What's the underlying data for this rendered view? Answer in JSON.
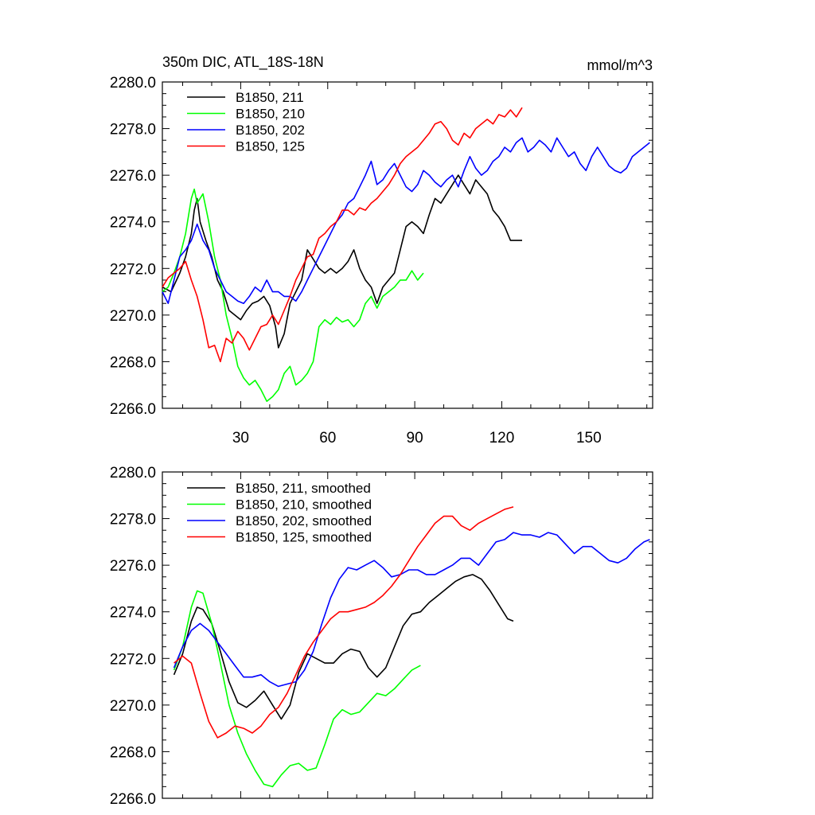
{
  "chart_data": [
    {
      "type": "line",
      "title": "350m DIC, ATL_18S-18N",
      "units": "mmol/m^3",
      "ylim": [
        2266.0,
        2280.0
      ],
      "xlim": [
        3,
        172
      ],
      "yticks": [
        "2266.0",
        "2268.0",
        "2270.0",
        "2272.0",
        "2274.0",
        "2276.0",
        "2278.0",
        "2280.0"
      ],
      "xticks": [
        "30",
        "60",
        "90",
        "120",
        "150"
      ],
      "legend_position": "top-left",
      "series": [
        {
          "name": "B1850, 211",
          "color": "#000000",
          "x": [
            3,
            6,
            9,
            11,
            13,
            14,
            15,
            16,
            18,
            20,
            22,
            24,
            26,
            28,
            30,
            32,
            34,
            36,
            38,
            40,
            42,
            43,
            45,
            47,
            49,
            51,
            53,
            55,
            57,
            59,
            61,
            63,
            65,
            67,
            69,
            71,
            73,
            75,
            77,
            79,
            81,
            83,
            85,
            87,
            89,
            91,
            93,
            95,
            97,
            99,
            101,
            103,
            105,
            107,
            109,
            111,
            113,
            115,
            117,
            119,
            121,
            123,
            125,
            127
          ],
          "y": [
            2271.2,
            2271.0,
            2271.8,
            2272.5,
            2273.5,
            2274.5,
            2275.0,
            2274.0,
            2273.2,
            2272.5,
            2271.5,
            2271.0,
            2270.2,
            2270.0,
            2269.8,
            2270.2,
            2270.5,
            2270.6,
            2270.8,
            2270.4,
            2269.5,
            2268.6,
            2269.2,
            2270.5,
            2271.0,
            2271.5,
            2272.8,
            2272.4,
            2272.0,
            2271.8,
            2272.0,
            2271.8,
            2272.0,
            2272.3,
            2272.8,
            2272.0,
            2271.5,
            2271.2,
            2270.5,
            2271.2,
            2271.5,
            2271.8,
            2272.8,
            2273.8,
            2274.0,
            2273.8,
            2273.5,
            2274.3,
            2275.0,
            2274.8,
            2275.2,
            2275.6,
            2276.0,
            2275.6,
            2275.2,
            2275.8,
            2275.5,
            2275.2,
            2274.5,
            2274.2,
            2273.8,
            2273.2,
            2273.2,
            2273.2
          ]
        },
        {
          "name": "B1850, 210",
          "color": "#00ff00",
          "x": [
            3,
            5,
            7,
            9,
            11,
            13,
            14,
            15,
            17,
            19,
            21,
            23,
            25,
            27,
            29,
            31,
            33,
            35,
            37,
            39,
            41,
            43,
            45,
            47,
            49,
            51,
            53,
            55,
            57,
            59,
            61,
            63,
            65,
            67,
            69,
            71,
            73,
            75,
            77,
            79,
            81,
            83,
            85,
            87,
            89,
            91,
            93
          ],
          "y": [
            2271.0,
            2271.2,
            2271.8,
            2272.5,
            2273.5,
            2275.0,
            2275.4,
            2274.8,
            2275.2,
            2274.0,
            2272.5,
            2271.5,
            2270.0,
            2269.0,
            2267.8,
            2267.3,
            2267.0,
            2267.2,
            2266.8,
            2266.3,
            2266.5,
            2266.8,
            2267.5,
            2267.8,
            2267.0,
            2267.2,
            2267.5,
            2268.0,
            2269.5,
            2269.8,
            2269.6,
            2269.9,
            2269.7,
            2269.8,
            2269.5,
            2269.8,
            2270.5,
            2270.8,
            2270.3,
            2270.8,
            2271.0,
            2271.2,
            2271.5,
            2271.5,
            2271.9,
            2271.5,
            2271.8
          ]
        },
        {
          "name": "B1850, 202",
          "color": "#0000ff",
          "x": [
            3,
            5,
            7,
            9,
            11,
            13,
            15,
            17,
            19,
            21,
            23,
            25,
            27,
            29,
            31,
            33,
            35,
            37,
            39,
            41,
            43,
            45,
            47,
            49,
            51,
            53,
            55,
            57,
            59,
            61,
            63,
            65,
            67,
            69,
            71,
            73,
            75,
            77,
            79,
            81,
            83,
            85,
            87,
            89,
            91,
            93,
            95,
            97,
            99,
            101,
            103,
            105,
            107,
            109,
            111,
            113,
            115,
            117,
            119,
            121,
            123,
            125,
            127,
            129,
            131,
            133,
            135,
            137,
            139,
            141,
            143,
            145,
            147,
            149,
            151,
            153,
            155,
            157,
            159,
            161,
            163,
            165,
            167,
            169,
            171
          ],
          "y": [
            2271.0,
            2270.5,
            2271.5,
            2272.5,
            2272.8,
            2273.2,
            2273.9,
            2273.2,
            2272.8,
            2272.0,
            2271.5,
            2271.0,
            2270.8,
            2270.6,
            2270.5,
            2270.8,
            2271.2,
            2271.0,
            2271.5,
            2271.0,
            2271.0,
            2270.8,
            2270.8,
            2270.6,
            2271.0,
            2271.5,
            2272.0,
            2272.5,
            2273.0,
            2273.5,
            2274.0,
            2274.3,
            2274.8,
            2275.0,
            2275.5,
            2276.0,
            2276.6,
            2275.6,
            2275.8,
            2276.2,
            2276.5,
            2276.0,
            2275.5,
            2275.3,
            2275.6,
            2276.2,
            2276.0,
            2275.7,
            2275.5,
            2275.8,
            2276.0,
            2275.5,
            2276.2,
            2276.8,
            2276.3,
            2276.0,
            2276.2,
            2276.6,
            2276.8,
            2277.2,
            2277.0,
            2277.4,
            2277.6,
            2277.0,
            2277.2,
            2277.5,
            2277.3,
            2277.0,
            2277.6,
            2277.2,
            2276.8,
            2277.0,
            2276.5,
            2276.2,
            2276.8,
            2277.2,
            2276.8,
            2276.4,
            2276.2,
            2276.1,
            2276.3,
            2276.8,
            2277.0,
            2277.2,
            2277.4
          ]
        },
        {
          "name": "B1850, 125",
          "color": "#ff0000",
          "x": [
            3,
            5,
            7,
            9,
            11,
            13,
            15,
            17,
            19,
            21,
            23,
            25,
            27,
            29,
            31,
            33,
            35,
            37,
            39,
            41,
            43,
            45,
            47,
            49,
            51,
            53,
            55,
            57,
            59,
            61,
            63,
            65,
            67,
            69,
            71,
            73,
            75,
            77,
            79,
            81,
            83,
            85,
            87,
            89,
            91,
            93,
            95,
            97,
            99,
            101,
            103,
            105,
            107,
            109,
            111,
            113,
            115,
            117,
            119,
            121,
            123,
            125,
            127
          ],
          "y": [
            2271.2,
            2271.6,
            2271.8,
            2272.0,
            2272.3,
            2271.5,
            2270.8,
            2269.8,
            2268.6,
            2268.7,
            2268.0,
            2269.0,
            2268.8,
            2269.3,
            2269.0,
            2268.5,
            2269.0,
            2269.5,
            2269.6,
            2270.0,
            2269.6,
            2270.2,
            2270.8,
            2271.5,
            2272.0,
            2272.5,
            2272.6,
            2273.3,
            2273.5,
            2273.8,
            2274.0,
            2274.5,
            2274.5,
            2274.3,
            2274.6,
            2274.5,
            2274.8,
            2275.0,
            2275.3,
            2275.6,
            2276.0,
            2276.5,
            2276.8,
            2277.0,
            2277.2,
            2277.5,
            2277.8,
            2278.2,
            2278.3,
            2278.0,
            2277.5,
            2277.3,
            2277.8,
            2277.6,
            2278.0,
            2278.2,
            2278.4,
            2278.2,
            2278.6,
            2278.5,
            2278.8,
            2278.5,
            2278.9
          ]
        }
      ]
    },
    {
      "type": "line",
      "ylim": [
        2266.0,
        2280.0
      ],
      "xlim": [
        3,
        172
      ],
      "yticks": [
        "2266.0",
        "2268.0",
        "2270.0",
        "2272.0",
        "2274.0",
        "2276.0",
        "2278.0",
        "2280.0"
      ],
      "legend_position": "top-left",
      "series": [
        {
          "name": "B1850, 211, smoothed",
          "color": "#000000",
          "x": [
            7,
            10,
            13,
            15,
            17,
            20,
            23,
            26,
            29,
            32,
            35,
            38,
            41,
            44,
            47,
            50,
            53,
            56,
            59,
            62,
            65,
            68,
            71,
            74,
            77,
            80,
            83,
            86,
            89,
            92,
            95,
            98,
            101,
            104,
            107,
            110,
            113,
            116,
            119,
            122,
            124
          ],
          "y": [
            2271.3,
            2272.2,
            2273.6,
            2274.2,
            2274.1,
            2273.5,
            2272.3,
            2271.0,
            2270.1,
            2269.9,
            2270.2,
            2270.6,
            2270.0,
            2269.4,
            2270.0,
            2271.4,
            2272.2,
            2272.0,
            2271.8,
            2271.8,
            2272.2,
            2272.4,
            2272.3,
            2271.6,
            2271.2,
            2271.6,
            2272.5,
            2273.4,
            2273.9,
            2274.0,
            2274.4,
            2274.7,
            2275.0,
            2275.3,
            2275.5,
            2275.6,
            2275.4,
            2274.9,
            2274.3,
            2273.7,
            2273.6
          ]
        },
        {
          "name": "B1850, 210, smoothed",
          "color": "#00ff00",
          "x": [
            7,
            10,
            13,
            15,
            17,
            20,
            23,
            26,
            29,
            32,
            35,
            38,
            41,
            44,
            47,
            50,
            53,
            56,
            59,
            62,
            65,
            68,
            71,
            74,
            77,
            80,
            83,
            86,
            89,
            92
          ],
          "y": [
            2271.5,
            2272.5,
            2274.2,
            2274.9,
            2274.8,
            2273.5,
            2271.8,
            2270.0,
            2268.8,
            2267.9,
            2267.2,
            2266.6,
            2266.5,
            2267.0,
            2267.4,
            2267.5,
            2267.2,
            2267.3,
            2268.3,
            2269.4,
            2269.8,
            2269.6,
            2269.7,
            2270.1,
            2270.5,
            2270.4,
            2270.7,
            2271.1,
            2271.5,
            2271.7
          ]
        },
        {
          "name": "B1850, 202, smoothed",
          "color": "#0000ff",
          "x": [
            7,
            10,
            13,
            16,
            19,
            22,
            25,
            28,
            31,
            34,
            37,
            40,
            43,
            46,
            49,
            52,
            55,
            58,
            61,
            64,
            67,
            70,
            73,
            76,
            79,
            82,
            85,
            88,
            91,
            94,
            97,
            100,
            103,
            106,
            109,
            112,
            115,
            118,
            121,
            124,
            127,
            130,
            133,
            136,
            139,
            142,
            145,
            148,
            151,
            154,
            157,
            160,
            163,
            166,
            169,
            171
          ],
          "y": [
            2271.6,
            2272.5,
            2273.2,
            2273.5,
            2273.2,
            2272.7,
            2272.2,
            2271.7,
            2271.2,
            2271.2,
            2271.3,
            2271.0,
            2270.8,
            2270.9,
            2271.0,
            2271.5,
            2272.3,
            2273.5,
            2274.6,
            2275.4,
            2275.9,
            2275.8,
            2276.0,
            2276.2,
            2275.9,
            2275.5,
            2275.6,
            2275.8,
            2275.8,
            2275.6,
            2275.6,
            2275.8,
            2276.0,
            2276.3,
            2276.3,
            2276.0,
            2276.5,
            2277.0,
            2277.1,
            2277.4,
            2277.3,
            2277.3,
            2277.2,
            2277.4,
            2277.3,
            2276.9,
            2276.5,
            2276.8,
            2276.8,
            2276.5,
            2276.2,
            2276.1,
            2276.3,
            2276.7,
            2277.0,
            2277.1
          ]
        },
        {
          "name": "B1850, 125, smoothed",
          "color": "#ff0000",
          "x": [
            7,
            10,
            13,
            16,
            19,
            22,
            25,
            28,
            31,
            34,
            37,
            40,
            43,
            46,
            49,
            52,
            55,
            58,
            61,
            64,
            67,
            70,
            73,
            76,
            79,
            82,
            85,
            88,
            91,
            94,
            97,
            100,
            103,
            106,
            109,
            112,
            115,
            118,
            121,
            124
          ],
          "y": [
            2271.8,
            2272.1,
            2271.8,
            2270.5,
            2269.3,
            2268.6,
            2268.8,
            2269.1,
            2269.0,
            2268.8,
            2269.1,
            2269.6,
            2269.9,
            2270.5,
            2271.3,
            2272.1,
            2272.7,
            2273.2,
            2273.7,
            2274.0,
            2274.0,
            2274.1,
            2274.2,
            2274.4,
            2274.7,
            2275.1,
            2275.6,
            2276.2,
            2276.8,
            2277.3,
            2277.8,
            2278.1,
            2278.1,
            2277.7,
            2277.5,
            2277.8,
            2278.0,
            2278.2,
            2278.4,
            2278.5
          ]
        }
      ]
    }
  ]
}
